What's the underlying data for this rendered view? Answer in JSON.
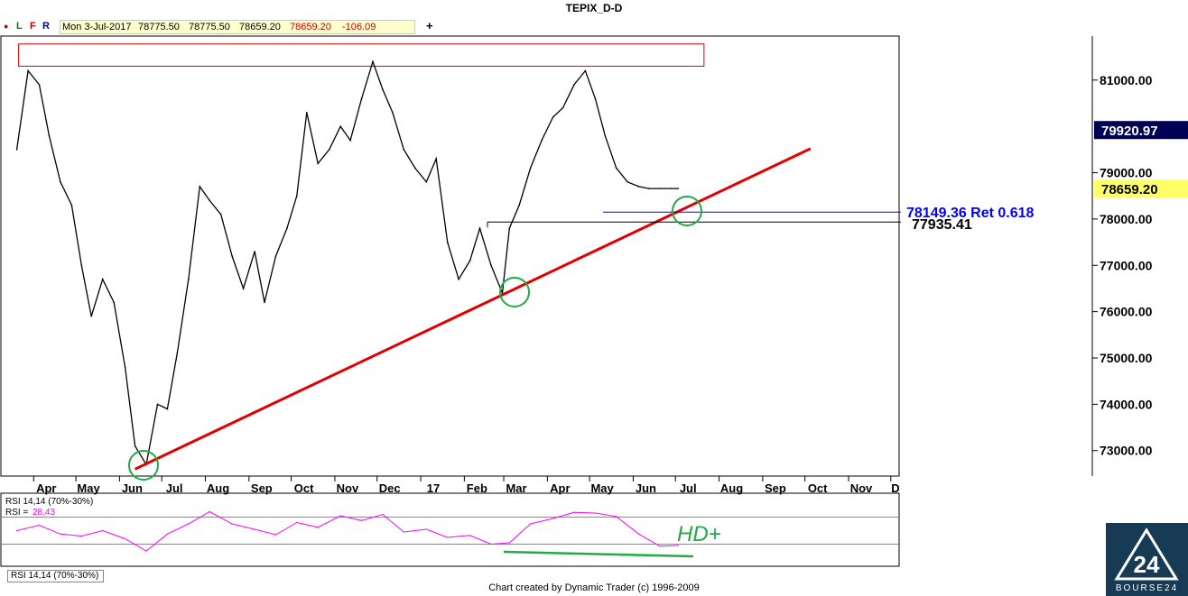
{
  "header": {
    "title": "TEPIX_D-D",
    "dot": "●",
    "btn_l": "L",
    "btn_f": "F",
    "btn_r": "R",
    "date": "Mon 3-Jul-2017",
    "open": "78775.50",
    "high": "78775.50",
    "low": "78659.20",
    "close": "78659.20",
    "change": "-106.09",
    "add_symbol": "+"
  },
  "chart_data": [
    {
      "type": "line",
      "title": "TEPIX_D-D",
      "x_tick_labels": [
        "Apr",
        "May",
        "Jun",
        "Jul",
        "Aug",
        "Sep",
        "Oct",
        "Nov",
        "Dec",
        "17",
        "Feb",
        "Mar",
        "Apr",
        "May",
        "Jun",
        "Jul",
        "Aug",
        "Sep",
        "Oct",
        "Nov",
        "D"
      ],
      "y_tick_labels": [
        "73000.00",
        "74000.00",
        "75000.00",
        "76000.00",
        "77000.00",
        "78000.00",
        "79000.00",
        "81000.00"
      ],
      "y_ticks": [
        73000,
        74000,
        75000,
        76000,
        77000,
        78000,
        79000,
        81000
      ],
      "ylim": [
        72450,
        81950
      ],
      "series": [
        {
          "x": [
            "2016-03-20",
            "2016-03-28",
            "2016-04-05",
            "2016-04-12",
            "2016-04-20",
            "2016-04-28",
            "2016-05-05",
            "2016-05-12",
            "2016-05-20",
            "2016-05-28",
            "2016-06-05",
            "2016-06-12",
            "2016-06-20",
            "2016-06-28",
            "2016-07-05",
            "2016-07-12",
            "2016-07-20",
            "2016-07-28",
            "2016-08-04",
            "2016-08-12",
            "2016-08-20",
            "2016-08-28",
            "2016-09-05",
            "2016-09-12",
            "2016-09-20",
            "2016-09-28",
            "2016-10-05",
            "2016-10-12",
            "2016-10-20",
            "2016-10-28",
            "2016-11-05",
            "2016-11-12",
            "2016-11-20",
            "2016-11-28",
            "2016-12-05",
            "2016-12-12",
            "2016-12-20",
            "2016-12-28",
            "2017-01-05",
            "2017-01-12",
            "2017-01-20",
            "2017-01-28",
            "2017-02-05",
            "2017-02-12",
            "2017-02-20",
            "2017-02-28",
            "2017-03-05",
            "2017-03-12",
            "2017-03-20",
            "2017-03-28",
            "2017-04-05",
            "2017-04-12",
            "2017-04-20",
            "2017-04-28",
            "2017-05-05",
            "2017-05-12",
            "2017-05-20",
            "2017-05-28",
            "2017-06-05",
            "2017-06-12",
            "2017-06-20",
            "2017-06-28",
            "2017-07-03"
          ],
          "values": [
            79500,
            81200,
            80900,
            79800,
            78800,
            78300,
            77000,
            75900,
            76700,
            76200,
            74800,
            73100,
            72700,
            74000,
            73900,
            75100,
            76700,
            78700,
            78400,
            78100,
            77200,
            76500,
            77300,
            76200,
            77200,
            77800,
            78500,
            80300,
            79200,
            79500,
            80000,
            79700,
            80600,
            81400,
            80800,
            80300,
            79500,
            79100,
            78800,
            79300,
            77500,
            76700,
            77100,
            77800,
            77000,
            76400,
            77800,
            78300,
            79100,
            79700,
            80200,
            80400,
            80900,
            81200,
            80600,
            79800,
            79100,
            78800,
            78700,
            78659,
            78659,
            78659,
            78659
          ]
        }
      ],
      "annotations": [
        {
          "label": "78149.36 Ret 0.618",
          "value": 78149.36,
          "color": "#0000ff"
        },
        {
          "label": "77935.41",
          "value": 77935.41,
          "color": "#000000"
        }
      ],
      "price_labels": [
        {
          "label": "79920.97",
          "value": 79920.97,
          "bg": "#000055",
          "fg": "#ffffff"
        },
        {
          "label": "78659.20",
          "value": 78659.2,
          "bg": "#ffff66",
          "fg": "#000000"
        }
      ],
      "trendline": {
        "color": "#e00000",
        "from": [
          "2016-06-12",
          72600
        ],
        "to": [
          "2017-10-05",
          79520
        ]
      },
      "resistance_zone": {
        "color": "#e00000",
        "from_date": "2016-03-20",
        "to_date": "2017-07-20",
        "low": 81300,
        "high": 81780
      }
    },
    {
      "type": "line",
      "title": "RSI 14,14 (70%-30%)",
      "value_label": "RSI =",
      "current_value": "28.43",
      "current_value_color": "#ff00ff",
      "ylim": [
        0,
        100
      ],
      "levels": [
        70,
        30
      ],
      "series": [
        {
          "x": [
            "2016-03-20",
            "2016-04-05",
            "2016-04-20",
            "2016-05-05",
            "2016-05-20",
            "2016-06-05",
            "2016-06-20",
            "2016-07-05",
            "2016-07-20",
            "2016-08-04",
            "2016-08-20",
            "2016-09-05",
            "2016-09-20",
            "2016-10-05",
            "2016-10-20",
            "2016-11-05",
            "2016-11-20",
            "2016-12-05",
            "2016-12-20",
            "2017-01-05",
            "2017-01-20",
            "2017-02-05",
            "2017-02-20",
            "2017-03-05",
            "2017-03-20",
            "2017-04-05",
            "2017-04-20",
            "2017-05-05",
            "2017-05-20",
            "2017-06-05",
            "2017-06-20",
            "2017-07-03"
          ],
          "values": [
            50,
            58,
            45,
            42,
            50,
            38,
            20,
            45,
            60,
            78,
            60,
            52,
            44,
            62,
            55,
            72,
            65,
            74,
            48,
            52,
            40,
            43,
            30,
            32,
            60,
            68,
            77,
            76,
            71,
            45,
            27,
            28
          ]
        }
      ],
      "annotation_text": "HD+",
      "annotation_color": "#22aa44"
    }
  ],
  "rsi_tab": "RSI 14,14 (70%-30%)",
  "footer": "Chart created by Dynamic Trader  (c) 1996-2009",
  "logo_text": "BOURSE24",
  "colors": {
    "price": "#000000",
    "rsi": "#ff00ff",
    "trend": "#e00000",
    "circle": "#22aa44",
    "ret": "#0000ff",
    "nav": "#000055",
    "last": "#ffff66"
  }
}
